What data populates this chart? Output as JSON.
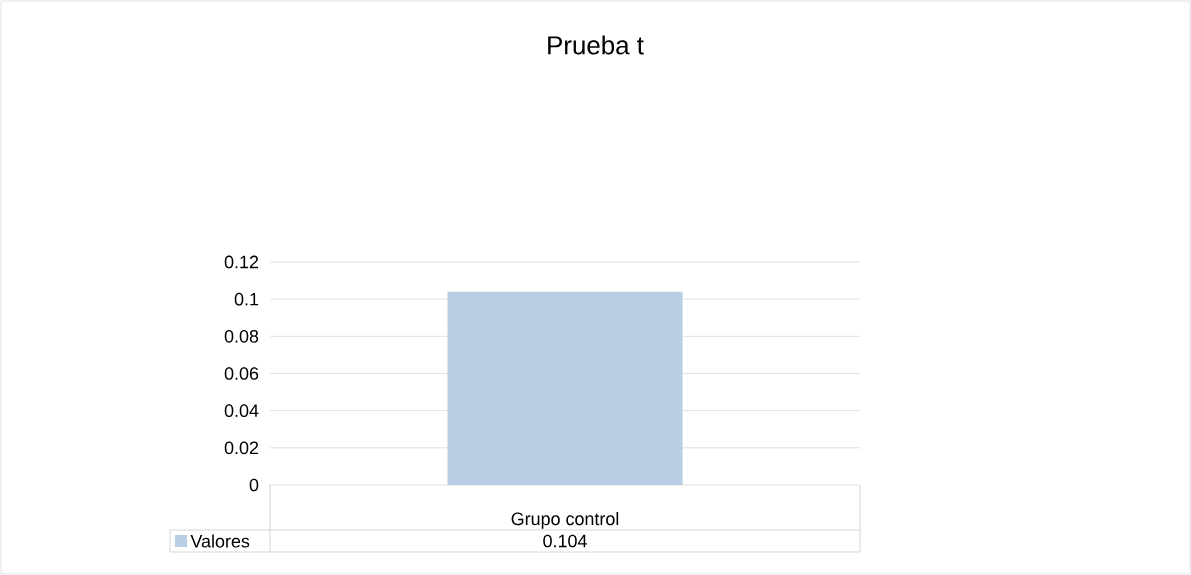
{
  "chart_data": {
    "type": "bar",
    "title": "Prueba t",
    "categories": [
      "Grupo control"
    ],
    "series": [
      {
        "name": "Valores",
        "color": "#b9cde5",
        "values": [
          0.104
        ]
      }
    ],
    "ylim": [
      0,
      0.12
    ],
    "yticks": [
      0,
      0.02,
      0.04,
      0.06,
      0.08,
      0.1,
      0.12
    ],
    "grid": "y",
    "legend": "bottom",
    "data_labels": true
  }
}
